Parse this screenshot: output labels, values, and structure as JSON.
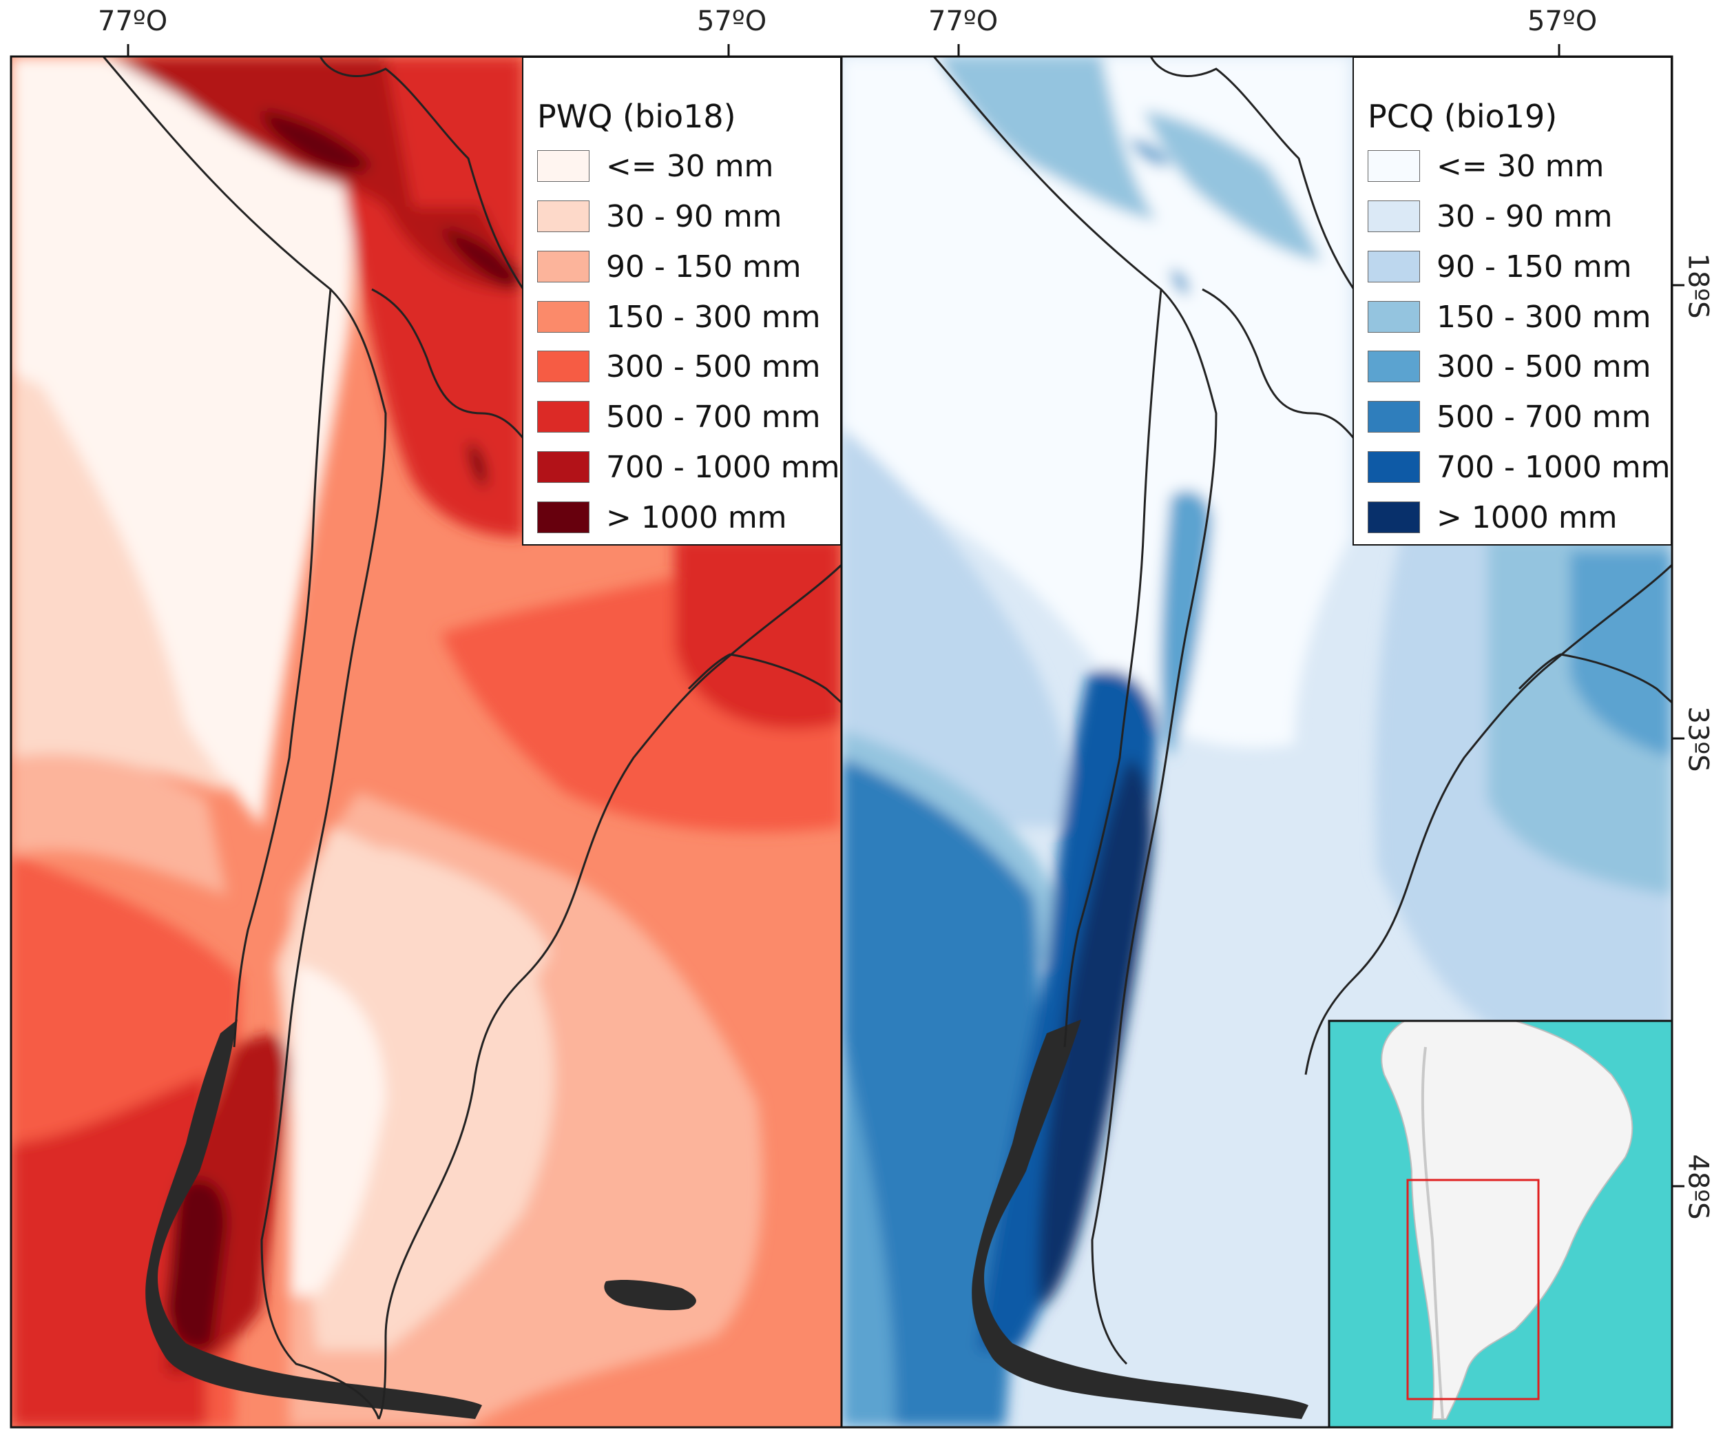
{
  "figure": {
    "top_axis": {
      "left_map": [
        "77ºO",
        "57ºO"
      ],
      "right_map": [
        "77ºO",
        "57ºO"
      ]
    },
    "right_axis": [
      "18ºS",
      "33ºS",
      "48ºS"
    ]
  },
  "left_map": {
    "legend": {
      "title": "PWQ (bio18)",
      "items": [
        {
          "label": "<= 30 mm",
          "color": "#fff5f0"
        },
        {
          "label": "30 - 90 mm",
          "color": "#fdd9c9"
        },
        {
          "label": "90 - 150 mm",
          "color": "#fcb49b"
        },
        {
          "label": "150 - 300 mm",
          "color": "#fb8a6a"
        },
        {
          "label": "300 - 500 mm",
          "color": "#f65c44"
        },
        {
          "label": "500 - 700 mm",
          "color": "#dc2a26"
        },
        {
          "label": "700 - 1000 mm",
          "color": "#b21218"
        },
        {
          "label": "> 1000 mm",
          "color": "#67000d"
        }
      ]
    }
  },
  "right_map": {
    "legend": {
      "title": "PCQ (bio19)",
      "items": [
        {
          "label": "<= 30 mm",
          "color": "#f7fbff"
        },
        {
          "label": "30 - 90 mm",
          "color": "#dbe9f6"
        },
        {
          "label": "90 - 150 mm",
          "color": "#bdd7ee"
        },
        {
          "label": "150 - 300 mm",
          "color": "#94c4df"
        },
        {
          "label": "300 - 500 mm",
          "color": "#5ba3d0"
        },
        {
          "label": "500 - 700 mm",
          "color": "#2f7ebc"
        },
        {
          "label": "700 - 1000 mm",
          "color": "#0e5aa6"
        },
        {
          "label": "> 1000 mm",
          "color": "#08306b"
        }
      ]
    },
    "inset": {
      "ocean_color": "#49d1cf",
      "land_color": "#f4f4f4",
      "extent_box_color": "#e02020"
    }
  }
}
